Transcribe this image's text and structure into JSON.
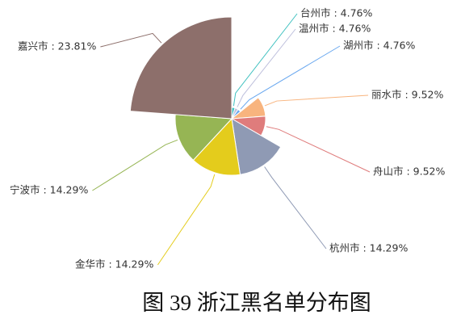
{
  "chart_data": {
    "type": "rose",
    "caption": "图 39 浙江黑名单分布图",
    "values": [
      4.76,
      4.76,
      4.76,
      9.52,
      9.52,
      14.29,
      14.29,
      14.29,
      23.81
    ],
    "value_labels": [
      "台州市 : 4.76%",
      "温州市 : 4.76%",
      "湖州市 : 4.76%",
      "丽水市 : 9.52%",
      "舟山市 : 9.52%",
      "杭州市 : 14.29%",
      "金华市 : 14.29%",
      "宁波市 : 14.29%",
      "嘉兴市 : 23.81%"
    ],
    "colors": [
      "#3fc1c0",
      "#bdbfdc",
      "#6aa8ef",
      "#f8b47e",
      "#df7c7c",
      "#8f9ab4",
      "#e4cc1c",
      "#96b554",
      "#8d6f6b"
    ]
  }
}
